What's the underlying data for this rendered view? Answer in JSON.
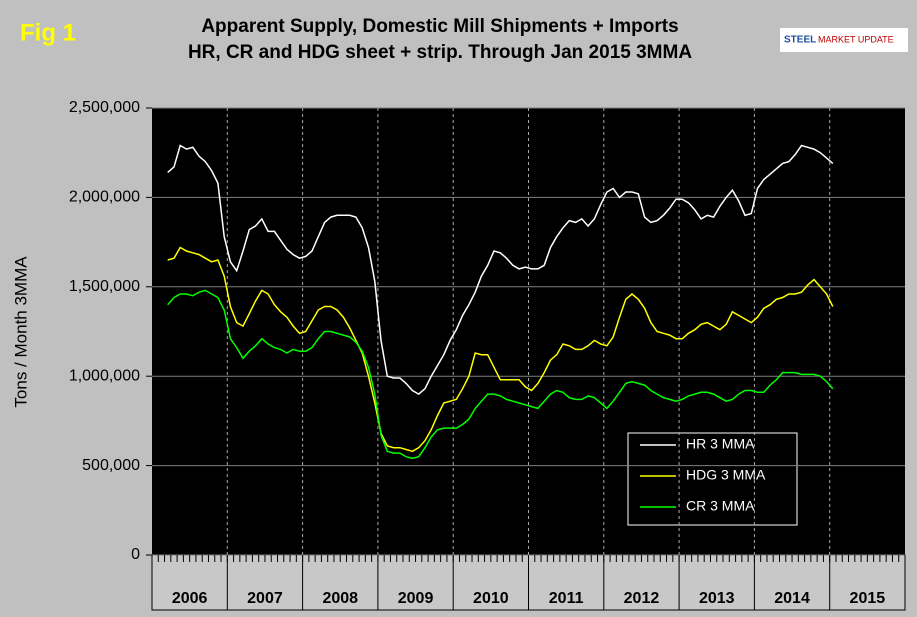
{
  "chart_data": {
    "type": "line",
    "figure_label": "Fig 1",
    "title": [
      "Apparent Supply, Domestic Mill Shipments + Imports",
      "HR, CR and HDG sheet + strip. Through Jan 2015 3MMA"
    ],
    "logo": [
      "STEEL",
      "MARKET UPDATE"
    ],
    "y_label": "Tons / Month 3MMA",
    "ylim": [
      0,
      2500000
    ],
    "yticks": [
      0,
      {
        "value": 500000,
        "label": "500,000"
      },
      {
        "value": 1000000,
        "label": "1,000,000"
      },
      {
        "value": 1500000,
        "label": "1,500,000"
      },
      {
        "value": 2000000,
        "label": "2,000,000"
      },
      {
        "value": 2500000,
        "label": "2,500,000"
      }
    ],
    "grid": true,
    "legend": "lower right",
    "categories": [
      null,
      null,
      null,
      null,
      null,
      null,
      "2006",
      null,
      null,
      null,
      null,
      null,
      null,
      null,
      null,
      null,
      null,
      null,
      "2007",
      null,
      null,
      null,
      null,
      null,
      null,
      null,
      null,
      null,
      null,
      null,
      "2008",
      null,
      null,
      null,
      null,
      null,
      null,
      null,
      null,
      null,
      null,
      null,
      "2009",
      null,
      null,
      null,
      null,
      null,
      null,
      null,
      null,
      null,
      null,
      null,
      "2010",
      null,
      null,
      null,
      null,
      null,
      null,
      null,
      null,
      null,
      null,
      null,
      "2011",
      null,
      null,
      null,
      null,
      null,
      null,
      null,
      null,
      null,
      null,
      null,
      "2012",
      null,
      null,
      null,
      null,
      null,
      null,
      null,
      null,
      null,
      null,
      null,
      "2013",
      null,
      null,
      null,
      null,
      null,
      null,
      null,
      null,
      null,
      null,
      null,
      "2014",
      null,
      null,
      null,
      null,
      null,
      null,
      null,
      null,
      null,
      null,
      null,
      "2015",
      null,
      null,
      null,
      null,
      null
    ],
    "series": [
      {
        "name": "HR 3 MMA",
        "color": "#ffffff",
        "values": [
          null,
          null,
          2140000,
          2170000,
          2290000,
          2270000,
          2280000,
          2230000,
          2200000,
          2150000,
          2080000,
          1780000,
          1640000,
          1590000,
          1700000,
          1820000,
          1840000,
          1880000,
          1810000,
          1810000,
          1760000,
          1710000,
          1680000,
          1660000,
          1670000,
          1700000,
          1780000,
          1860000,
          1890000,
          1900000,
          1900000,
          1900000,
          1890000,
          1830000,
          1720000,
          1530000,
          1200000,
          1000000,
          990000,
          990000,
          960000,
          920000,
          900000,
          930000,
          1000000,
          1060000,
          1120000,
          1200000,
          1260000,
          1340000,
          1400000,
          1470000,
          1560000,
          1620000,
          1700000,
          1690000,
          1660000,
          1620000,
          1600000,
          1610000,
          1600000,
          1600000,
          1620000,
          1720000,
          1780000,
          1830000,
          1870000,
          1860000,
          1880000,
          1840000,
          1880000,
          1960000,
          2030000,
          2050000,
          2000000,
          2030000,
          2030000,
          2020000,
          1890000,
          1860000,
          1870000,
          1900000,
          1940000,
          1990000,
          1990000,
          1970000,
          1930000,
          1880000,
          1900000,
          1890000,
          1950000,
          2000000,
          2040000,
          1980000,
          1900000,
          1910000,
          2050000,
          2100000,
          2130000,
          2160000,
          2190000,
          2200000,
          2240000,
          2290000,
          2280000,
          2270000,
          2250000,
          2220000,
          2190000,
          null,
          null,
          null,
          null,
          null,
          null,
          null,
          null,
          null,
          null,
          null
        ]
      },
      {
        "name": "HDG 3 MMA",
        "color": "#ffff00",
        "values": [
          null,
          null,
          1650000,
          1660000,
          1720000,
          1700000,
          1690000,
          1680000,
          1660000,
          1640000,
          1650000,
          1560000,
          1390000,
          1300000,
          1280000,
          1350000,
          1420000,
          1480000,
          1460000,
          1400000,
          1360000,
          1330000,
          1280000,
          1240000,
          1250000,
          1310000,
          1370000,
          1390000,
          1390000,
          1370000,
          1330000,
          1270000,
          1200000,
          1130000,
          1000000,
          850000,
          680000,
          610000,
          600000,
          600000,
          590000,
          580000,
          600000,
          640000,
          700000,
          780000,
          850000,
          860000,
          870000,
          930000,
          1000000,
          1130000,
          1120000,
          1120000,
          1050000,
          980000,
          980000,
          980000,
          980000,
          940000,
          920000,
          960000,
          1020000,
          1090000,
          1120000,
          1180000,
          1170000,
          1150000,
          1150000,
          1170000,
          1200000,
          1180000,
          1170000,
          1220000,
          1330000,
          1430000,
          1460000,
          1430000,
          1380000,
          1300000,
          1250000,
          1240000,
          1230000,
          1210000,
          1210000,
          1240000,
          1260000,
          1290000,
          1300000,
          1280000,
          1260000,
          1290000,
          1360000,
          1340000,
          1320000,
          1300000,
          1330000,
          1380000,
          1400000,
          1430000,
          1440000,
          1460000,
          1460000,
          1470000,
          1510000,
          1540000,
          1500000,
          1460000,
          1390000,
          null,
          null,
          null,
          null,
          null,
          null,
          null,
          null,
          null,
          null,
          null
        ]
      },
      {
        "name": "CR 3 MMA",
        "color": "#00ff00",
        "values": [
          null,
          null,
          1400000,
          1440000,
          1460000,
          1460000,
          1450000,
          1470000,
          1480000,
          1460000,
          1440000,
          1370000,
          1210000,
          1160000,
          1100000,
          1140000,
          1170000,
          1210000,
          1180000,
          1160000,
          1150000,
          1130000,
          1150000,
          1140000,
          1140000,
          1160000,
          1210000,
          1250000,
          1250000,
          1240000,
          1230000,
          1220000,
          1190000,
          1140000,
          1050000,
          900000,
          670000,
          580000,
          570000,
          570000,
          550000,
          540000,
          550000,
          600000,
          660000,
          700000,
          710000,
          710000,
          710000,
          730000,
          760000,
          820000,
          860000,
          900000,
          900000,
          890000,
          870000,
          860000,
          850000,
          840000,
          830000,
          820000,
          860000,
          900000,
          920000,
          910000,
          880000,
          870000,
          870000,
          890000,
          880000,
          850000,
          820000,
          860000,
          910000,
          960000,
          970000,
          960000,
          950000,
          920000,
          900000,
          880000,
          870000,
          860000,
          870000,
          890000,
          900000,
          910000,
          910000,
          900000,
          880000,
          860000,
          870000,
          900000,
          920000,
          920000,
          910000,
          910000,
          950000,
          980000,
          1020000,
          1020000,
          1020000,
          1010000,
          1010000,
          1010000,
          1000000,
          970000,
          930000,
          null,
          null,
          null,
          null,
          null,
          null,
          null,
          null,
          null,
          null,
          null
        ]
      }
    ]
  }
}
